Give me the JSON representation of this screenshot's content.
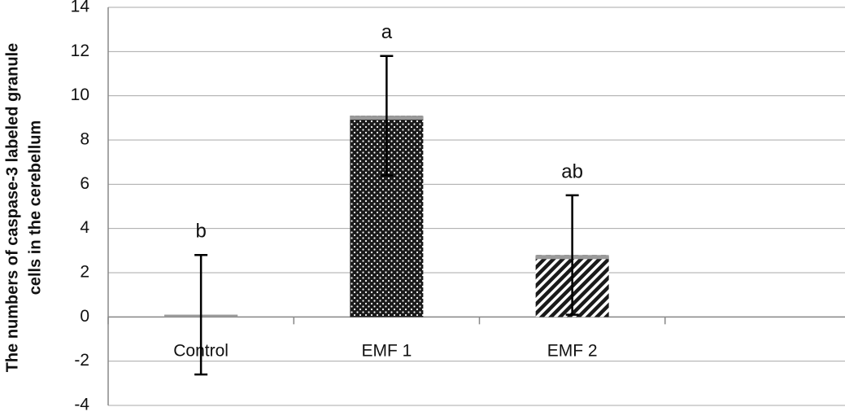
{
  "chart_data": {
    "type": "bar",
    "ylabel": [
      "The numbers of caspase-3 labeled granule",
      "cells in the cerebellum"
    ],
    "categories": [
      "Control",
      "EMF 1",
      "EMF 2",
      null
    ],
    "values": [
      0.1,
      9.1,
      2.8,
      null
    ],
    "errors": [
      2.7,
      2.7,
      2.7,
      null
    ],
    "letters": [
      "b",
      "a",
      "ab",
      null
    ],
    "patterns": [
      "solid",
      "dots",
      "hatch",
      null
    ],
    "color": "#222222",
    "top_color": "#9a9a9a",
    "ylim": [
      -4,
      14
    ],
    "yticks": [
      -4,
      -2,
      0,
      2,
      4,
      6,
      8,
      10,
      12,
      14
    ],
    "grid": true
  }
}
